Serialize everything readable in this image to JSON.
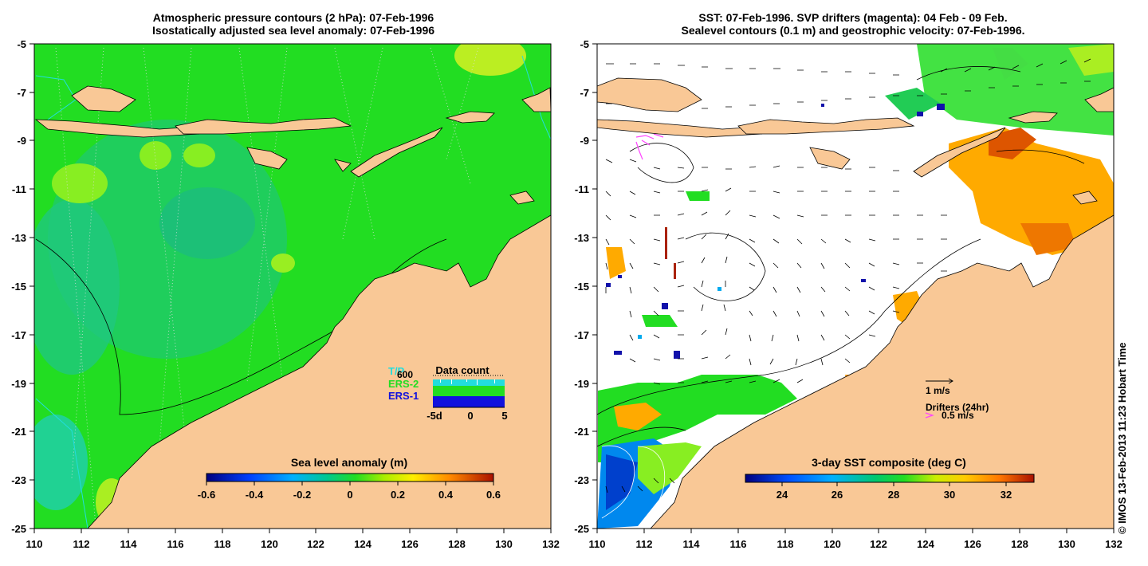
{
  "left_panel": {
    "title_line1": "Atmospheric pressure contours (2 hPa): 07-Feb-1996",
    "title_line2": "Isostatically adjusted sea level anomaly: 07-Feb-1996",
    "colorbar_title": "Sea level anomaly (m)",
    "colorbar_ticks": [
      "-0.6",
      "-0.4",
      "-0.2",
      "0",
      "0.2",
      "0.4",
      "0.6"
    ],
    "legend": {
      "title": "Data count",
      "max_label": "600",
      "sources": [
        {
          "name": "T/P",
          "color": "#22dddd"
        },
        {
          "name": "ERS-2",
          "color": "#22dd22"
        },
        {
          "name": "ERS-1",
          "color": "#1111dd"
        }
      ],
      "axis_labels": [
        "-5d",
        "0",
        "5"
      ]
    }
  },
  "right_panel": {
    "title_line1": "SST: 07-Feb-1996. SVP drifters (magenta): 04 Feb - 09 Feb.",
    "title_line2": "Sealevel contours (0.1 m) and geostrophic velocity: 07-Feb-1996.",
    "colorbar_title": "3-day SST composite (deg C)",
    "colorbar_ticks": [
      "24",
      "26",
      "28",
      "30",
      "32"
    ],
    "velocity_scale_label": "1 m/s",
    "drifters_label": "Drifters (24hr)",
    "drifter_scale_label": "0.5 m/s"
  },
  "axes": {
    "x_ticks": [
      "110",
      "112",
      "114",
      "116",
      "118",
      "120",
      "122",
      "124",
      "126",
      "128",
      "130",
      "132"
    ],
    "y_ticks": [
      "-5",
      "-7",
      "-9",
      "-11",
      "-13",
      "-15",
      "-17",
      "-19",
      "-21",
      "-23",
      "-25"
    ]
  },
  "credit": "© IMOS 13-Feb-2013 11:23 Hobart Time",
  "colors": {
    "land": "#f9c896",
    "ocean_sla": "#22dd22",
    "sst_missing": "#ffffff",
    "bathymetry": "#22dddd",
    "drifter": "#ff44ff"
  }
}
